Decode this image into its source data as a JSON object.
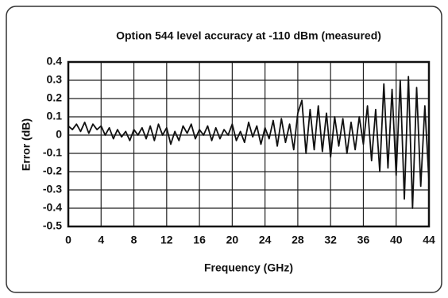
{
  "chart_data": {
    "type": "line",
    "title": "Option 544 level accuracy at -110 dBm (measured)",
    "xlabel": "Frequency (GHz)",
    "ylabel": "Error (dB)",
    "x": [
      0,
      0.5,
      1,
      1.5,
      2,
      2.5,
      3,
      3.5,
      4,
      4.5,
      5,
      5.5,
      6,
      6.5,
      7,
      7.5,
      8,
      8.5,
      9,
      9.5,
      10,
      10.5,
      11,
      11.5,
      12,
      12.5,
      13,
      13.5,
      14,
      14.5,
      15,
      15.5,
      16,
      16.5,
      17,
      17.5,
      18,
      18.5,
      19,
      19.5,
      20,
      20.5,
      21,
      21.5,
      22,
      22.5,
      23,
      23.5,
      24,
      24.5,
      25,
      25.5,
      26,
      26.5,
      27,
      27.5,
      28,
      28.5,
      29,
      29.5,
      30,
      30.5,
      31,
      31.5,
      32,
      32.5,
      33,
      33.5,
      34,
      34.5,
      35,
      35.5,
      36,
      36.5,
      37,
      37.5,
      38,
      38.5,
      39,
      39.5,
      40,
      40.5,
      41,
      41.5,
      42,
      42.5,
      43,
      43.5,
      44
    ],
    "values": [
      0.05,
      0.03,
      0.06,
      0.02,
      0.07,
      0.01,
      0.06,
      0.03,
      0.05,
      0.0,
      0.04,
      -0.02,
      0.03,
      -0.01,
      0.02,
      -0.03,
      0.03,
      0.0,
      0.04,
      -0.02,
      0.05,
      -0.03,
      0.06,
      0.0,
      0.04,
      -0.05,
      0.02,
      -0.03,
      0.05,
      0.01,
      0.06,
      -0.02,
      0.03,
      0.0,
      0.05,
      -0.03,
      0.04,
      -0.02,
      0.03,
      0.0,
      0.06,
      -0.03,
      0.02,
      -0.04,
      0.07,
      -0.01,
      0.05,
      -0.05,
      0.04,
      -0.02,
      0.08,
      -0.06,
      0.09,
      -0.04,
      0.06,
      -0.08,
      0.12,
      0.19,
      -0.1,
      0.14,
      -0.08,
      0.16,
      -0.09,
      0.12,
      -0.12,
      0.1,
      -0.06,
      0.09,
      -0.1,
      0.07,
      -0.08,
      0.1,
      -0.05,
      0.16,
      -0.14,
      0.14,
      -0.2,
      0.28,
      -0.18,
      0.25,
      -0.22,
      0.3,
      -0.35,
      0.32,
      -0.4,
      0.26,
      -0.28,
      0.16,
      -0.25
    ],
    "color": "#111111",
    "xlim": [
      0,
      44
    ],
    "xticks": [
      0,
      4,
      8,
      12,
      16,
      20,
      24,
      28,
      32,
      36,
      40,
      44
    ],
    "ylim": [
      -0.5,
      0.4
    ],
    "yticks": [
      0.4,
      0.3,
      0.2,
      0.1,
      0,
      -0.1,
      -0.2,
      -0.3,
      -0.4,
      -0.5
    ],
    "grid": true
  }
}
